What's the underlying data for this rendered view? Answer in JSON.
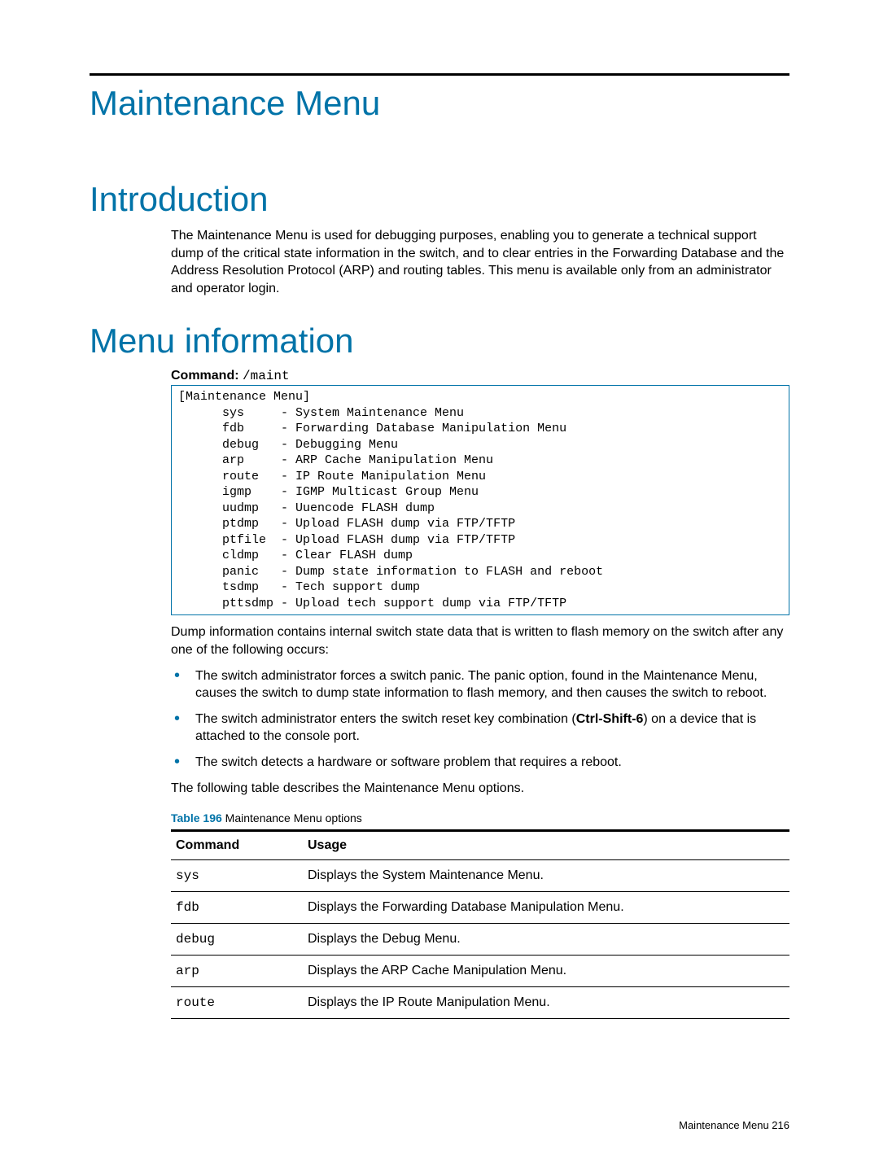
{
  "chapter_title": "Maintenance Menu",
  "intro": {
    "heading": "Introduction",
    "para": "The Maintenance Menu is used for debugging purposes, enabling you to generate a technical support dump of the critical state information in the switch, and to clear entries in the Forwarding Database and the Address Resolution Protocol (ARP) and routing tables. This menu is available only from an administrator and operator login."
  },
  "menu_info": {
    "heading": "Menu information",
    "command_label": "Command:",
    "command_value": "/maint",
    "code_block": "[Maintenance Menu]\n      sys     - System Maintenance Menu\n      fdb     - Forwarding Database Manipulation Menu\n      debug   - Debugging Menu\n      arp     - ARP Cache Manipulation Menu\n      route   - IP Route Manipulation Menu\n      igmp    - IGMP Multicast Group Menu\n      uudmp   - Uuencode FLASH dump\n      ptdmp   - Upload FLASH dump via FTP/TFTP\n      ptfile  - Upload FLASH dump via FTP/TFTP\n      cldmp   - Clear FLASH dump\n      panic   - Dump state information to FLASH and reboot\n      tsdmp   - Tech support dump\n      pttsdmp - Upload tech support dump via FTP/TFTP",
    "after_code_para": "Dump information contains internal switch state data that is written to flash memory on the switch after any one of the following occurs:",
    "bullets": {
      "b1": "The switch administrator forces a switch panic. The panic option, found in the Maintenance Menu, causes the switch to dump state information to flash memory, and then causes the switch to reboot.",
      "b2_pre": "The switch administrator enters the switch reset key combination (",
      "b2_key": "Ctrl-Shift-6",
      "b2_post": ") on a device that is attached to the console port.",
      "b3": "The switch detects a hardware or software problem that requires a reboot."
    },
    "table_intro": "The following table describes the Maintenance Menu options.",
    "table_caption_label": "Table 196",
    "table_caption_text": "  Maintenance Menu options",
    "table": {
      "headers": {
        "c1": "Command",
        "c2": "Usage"
      },
      "rows": [
        {
          "cmd": "sys",
          "usage": "Displays the System Maintenance Menu."
        },
        {
          "cmd": "fdb",
          "usage": "Displays the Forwarding Database Manipulation Menu."
        },
        {
          "cmd": "debug",
          "usage": "Displays the Debug Menu."
        },
        {
          "cmd": "arp",
          "usage": "Displays the ARP Cache Manipulation Menu."
        },
        {
          "cmd": "route",
          "usage": "Displays the IP Route Manipulation Menu."
        }
      ]
    }
  },
  "footer": "Maintenance Menu   216",
  "colors": {
    "accent": "#0073a8",
    "text": "#000000",
    "background": "#ffffff"
  }
}
